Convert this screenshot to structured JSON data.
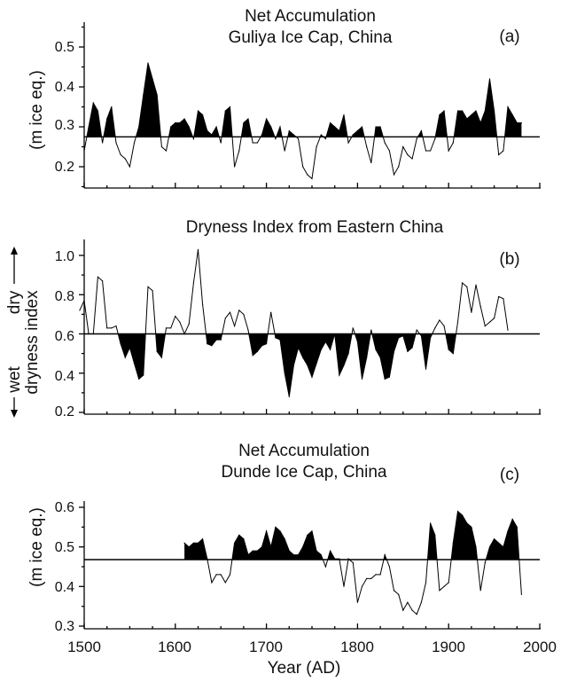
{
  "x_axis": {
    "label": "Year (AD)",
    "ticks": [
      "1500",
      "1600",
      "1700",
      "1800",
      "1900",
      "2000"
    ]
  },
  "chart_data": [
    {
      "type": "area",
      "panel": "(a)",
      "title": "Net Accumulation",
      "subtitle": "Guliya Ice Cap, China",
      "ylabel": "(m ice eq.)",
      "xlabel": "",
      "xlim": [
        1500,
        2000
      ],
      "ylim": [
        0.15,
        0.55
      ],
      "yticks": [
        "0.2",
        "0.3",
        "0.4",
        "0.5"
      ],
      "baseline": 0.275,
      "grid": false,
      "series": [
        {
          "x": [
            1500,
            1505,
            1510,
            1515,
            1520,
            1525,
            1530,
            1535,
            1540,
            1545,
            1550,
            1555,
            1560,
            1565,
            1570,
            1575,
            1580,
            1585,
            1590,
            1595,
            1600,
            1605,
            1610,
            1615,
            1620,
            1625,
            1630,
            1635,
            1640,
            1645,
            1650,
            1655,
            1660,
            1665,
            1670,
            1675,
            1680,
            1685,
            1690,
            1695,
            1700,
            1705,
            1710,
            1715,
            1720,
            1725,
            1730,
            1735,
            1740,
            1745,
            1750,
            1755,
            1760,
            1765,
            1770,
            1775,
            1780,
            1785,
            1790,
            1795,
            1800,
            1805,
            1810,
            1815,
            1820,
            1825,
            1830,
            1835,
            1840,
            1845,
            1850,
            1855,
            1860,
            1865,
            1870,
            1875,
            1880,
            1885,
            1890,
            1895,
            1900,
            1905,
            1910,
            1915,
            1920,
            1925,
            1930,
            1935,
            1940,
            1945,
            1950,
            1955,
            1960,
            1965,
            1970,
            1975,
            1980
          ],
          "values": [
            0.24,
            0.3,
            0.36,
            0.34,
            0.26,
            0.32,
            0.35,
            0.26,
            0.23,
            0.22,
            0.2,
            0.26,
            0.3,
            0.38,
            0.46,
            0.42,
            0.38,
            0.25,
            0.24,
            0.3,
            0.31,
            0.31,
            0.32,
            0.3,
            0.27,
            0.34,
            0.33,
            0.29,
            0.28,
            0.3,
            0.26,
            0.34,
            0.35,
            0.2,
            0.24,
            0.31,
            0.32,
            0.26,
            0.26,
            0.28,
            0.32,
            0.3,
            0.27,
            0.3,
            0.24,
            0.29,
            0.28,
            0.27,
            0.2,
            0.18,
            0.17,
            0.25,
            0.28,
            0.27,
            0.31,
            0.3,
            0.29,
            0.33,
            0.26,
            0.28,
            0.29,
            0.3,
            0.25,
            0.21,
            0.3,
            0.3,
            0.26,
            0.24,
            0.18,
            0.2,
            0.25,
            0.23,
            0.22,
            0.27,
            0.29,
            0.24,
            0.24,
            0.27,
            0.33,
            0.34,
            0.24,
            0.26,
            0.34,
            0.34,
            0.32,
            0.33,
            0.34,
            0.31,
            0.34,
            0.42,
            0.34,
            0.23,
            0.24,
            0.35,
            0.33,
            0.31,
            0.31
          ]
        }
      ]
    },
    {
      "type": "area",
      "panel": "(b)",
      "title": "Dryness Index  from Eastern China",
      "subtitle": "",
      "ylabel": "dryness index",
      "ylabel_dry": "dry",
      "ylabel_wet": "wet",
      "xlabel": "",
      "xlim": [
        1500,
        2000
      ],
      "ylim": [
        0.2,
        1.1
      ],
      "yticks": [
        "0.2",
        "0.4",
        "0.6",
        "0.8",
        "1.0"
      ],
      "baseline": 0.6,
      "grid": false,
      "series": [
        {
          "x": [
            1495,
            1500,
            1505,
            1510,
            1515,
            1520,
            1525,
            1530,
            1535,
            1540,
            1545,
            1550,
            1555,
            1560,
            1565,
            1570,
            1575,
            1580,
            1585,
            1590,
            1595,
            1600,
            1605,
            1610,
            1615,
            1620,
            1625,
            1630,
            1635,
            1640,
            1645,
            1650,
            1655,
            1660,
            1665,
            1670,
            1675,
            1680,
            1685,
            1690,
            1695,
            1700,
            1705,
            1710,
            1715,
            1720,
            1725,
            1730,
            1735,
            1740,
            1745,
            1750,
            1755,
            1760,
            1765,
            1770,
            1775,
            1780,
            1785,
            1790,
            1795,
            1800,
            1805,
            1810,
            1815,
            1820,
            1825,
            1830,
            1835,
            1840,
            1845,
            1850,
            1855,
            1860,
            1865,
            1870,
            1875,
            1880,
            1885,
            1890,
            1895,
            1900,
            1905,
            1910,
            1915,
            1920,
            1925,
            1930,
            1935,
            1940,
            1945,
            1950,
            1955,
            1960,
            1965
          ],
          "values": [
            0.72,
            0.77,
            0.6,
            0.6,
            0.89,
            0.87,
            0.63,
            0.63,
            0.64,
            0.55,
            0.48,
            0.53,
            0.45,
            0.37,
            0.39,
            0.84,
            0.82,
            0.51,
            0.48,
            0.63,
            0.63,
            0.69,
            0.66,
            0.6,
            0.65,
            0.86,
            1.03,
            0.75,
            0.55,
            0.54,
            0.57,
            0.57,
            0.68,
            0.71,
            0.64,
            0.72,
            0.7,
            0.62,
            0.49,
            0.51,
            0.54,
            0.55,
            0.71,
            0.58,
            0.57,
            0.4,
            0.28,
            0.44,
            0.53,
            0.48,
            0.44,
            0.38,
            0.45,
            0.52,
            0.56,
            0.52,
            0.6,
            0.39,
            0.44,
            0.5,
            0.63,
            0.56,
            0.37,
            0.48,
            0.62,
            0.52,
            0.48,
            0.37,
            0.38,
            0.51,
            0.58,
            0.59,
            0.51,
            0.53,
            0.62,
            0.59,
            0.42,
            0.58,
            0.63,
            0.67,
            0.64,
            0.52,
            0.5,
            0.66,
            0.86,
            0.84,
            0.71,
            0.85,
            0.74,
            0.64,
            0.66,
            0.68,
            0.79,
            0.78,
            0.62
          ]
        }
      ]
    },
    {
      "type": "area",
      "panel": "(c)",
      "title": "Net Accumulation",
      "subtitle": "Dunde Ice Cap, China",
      "ylabel": "(m ice eq.)",
      "xlabel": "Year (AD)",
      "xlim": [
        1500,
        2000
      ],
      "ylim": [
        0.3,
        0.6
      ],
      "yticks": [
        "0.3",
        "0.4",
        "0.5",
        "0.6"
      ],
      "baseline": 0.468,
      "grid": false,
      "series": [
        {
          "x": [
            1610,
            1615,
            1620,
            1625,
            1630,
            1635,
            1640,
            1645,
            1650,
            1655,
            1660,
            1665,
            1670,
            1675,
            1680,
            1685,
            1690,
            1695,
            1700,
            1705,
            1710,
            1715,
            1720,
            1725,
            1730,
            1735,
            1740,
            1745,
            1750,
            1755,
            1760,
            1765,
            1770,
            1775,
            1780,
            1785,
            1790,
            1795,
            1800,
            1805,
            1810,
            1815,
            1820,
            1825,
            1830,
            1835,
            1840,
            1845,
            1850,
            1855,
            1860,
            1865,
            1870,
            1875,
            1880,
            1885,
            1890,
            1895,
            1900,
            1905,
            1910,
            1915,
            1920,
            1925,
            1930,
            1935,
            1940,
            1945,
            1950,
            1955,
            1960,
            1965,
            1970,
            1975,
            1980
          ],
          "values": [
            0.51,
            0.5,
            0.51,
            0.51,
            0.52,
            0.47,
            0.41,
            0.43,
            0.43,
            0.41,
            0.43,
            0.51,
            0.53,
            0.52,
            0.48,
            0.49,
            0.49,
            0.5,
            0.54,
            0.5,
            0.55,
            0.54,
            0.52,
            0.49,
            0.48,
            0.48,
            0.5,
            0.53,
            0.54,
            0.49,
            0.48,
            0.45,
            0.49,
            0.47,
            0.47,
            0.4,
            0.47,
            0.46,
            0.36,
            0.4,
            0.42,
            0.42,
            0.43,
            0.43,
            0.48,
            0.45,
            0.39,
            0.38,
            0.34,
            0.36,
            0.34,
            0.33,
            0.36,
            0.41,
            0.56,
            0.53,
            0.39,
            0.4,
            0.41,
            0.51,
            0.59,
            0.58,
            0.56,
            0.55,
            0.5,
            0.39,
            0.46,
            0.5,
            0.52,
            0.51,
            0.5,
            0.54,
            0.57,
            0.55,
            0.38
          ]
        }
      ]
    }
  ]
}
